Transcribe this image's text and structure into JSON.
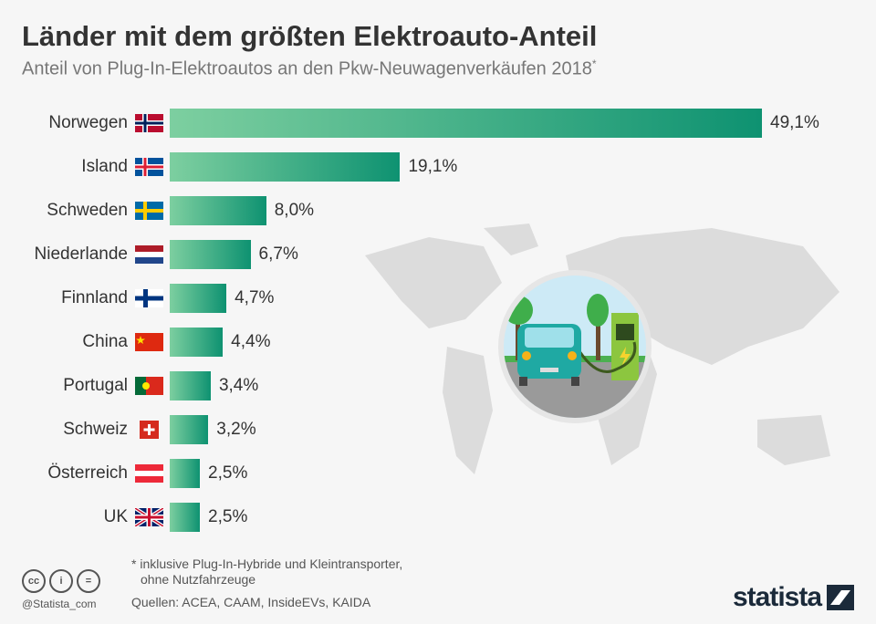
{
  "title": "Länder mit dem größten Elektroauto-Anteil",
  "subtitle": "Anteil von Plug-In-Elektroautos an den Pkw-Neuwagenverkäufen 2018",
  "subtitle_mark": "*",
  "chart_data": {
    "type": "bar",
    "orientation": "horizontal",
    "title": "Länder mit dem größten Elektroauto-Anteil",
    "categories": [
      "Norwegen",
      "Island",
      "Schweden",
      "Niederlande",
      "Finnland",
      "China",
      "Portugal",
      "Schweiz",
      "Österreich",
      "UK"
    ],
    "values": [
      49.1,
      19.1,
      8.0,
      6.7,
      4.7,
      4.4,
      3.4,
      3.2,
      2.5,
      2.5
    ],
    "value_labels": [
      "49,1%",
      "19,1%",
      "8,0%",
      "6,7%",
      "4,7%",
      "4,4%",
      "3,4%",
      "3,2%",
      "2,5%",
      "2,5%"
    ],
    "flags": [
      "norway",
      "iceland",
      "sweden",
      "netherlands",
      "finland",
      "china",
      "portugal",
      "switzerland",
      "austria",
      "uk"
    ],
    "unit": "%",
    "xlim": [
      0,
      49.1
    ],
    "grid": false,
    "bar_gradient": [
      "#7dcfa0",
      "#0e9271"
    ]
  },
  "footnote_1": "* inklusive Plug-In-Hybride und Kleintransporter,",
  "footnote_2": "ohne Nutzfahrzeuge",
  "sources": "Quellen: ACEA, CAAM, InsideEVs, KAIDA",
  "license_icons": [
    "cc",
    "i",
    "="
  ],
  "handle": "@Statista_com",
  "brand": "statista"
}
